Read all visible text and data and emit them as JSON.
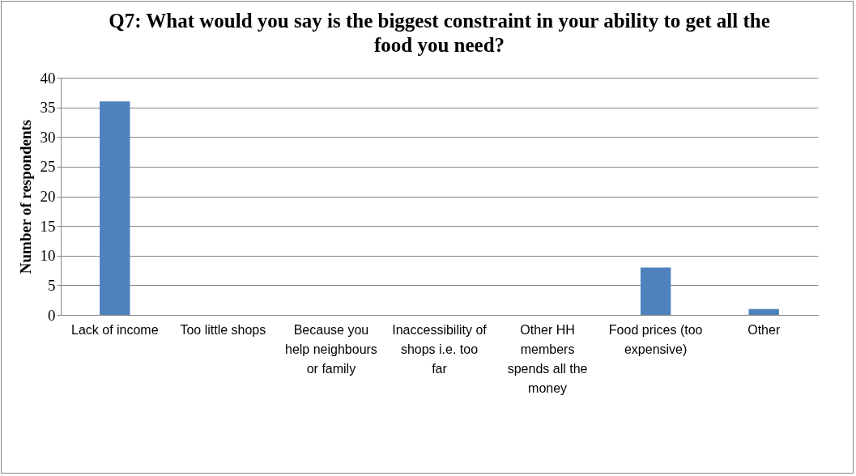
{
  "chart_data": {
    "type": "bar",
    "title": "Q7: What would you say is the biggest constraint in your ability to get all the food you need?",
    "ylabel": "Number of respondents",
    "categories": [
      "Lack of income",
      "Too little shops",
      "Because you help neighbours or family",
      "Inaccessibility of shops i.e. too far",
      "Other HH members spends all the money",
      "Food prices (too expensive)",
      "Other"
    ],
    "values": [
      36,
      0,
      0,
      0,
      0,
      8,
      1
    ],
    "color": "#4f81bd",
    "ylim": [
      0,
      40
    ],
    "yticks": [
      0,
      5,
      10,
      15,
      20,
      25,
      30,
      35,
      40
    ],
    "grid": "y"
  }
}
